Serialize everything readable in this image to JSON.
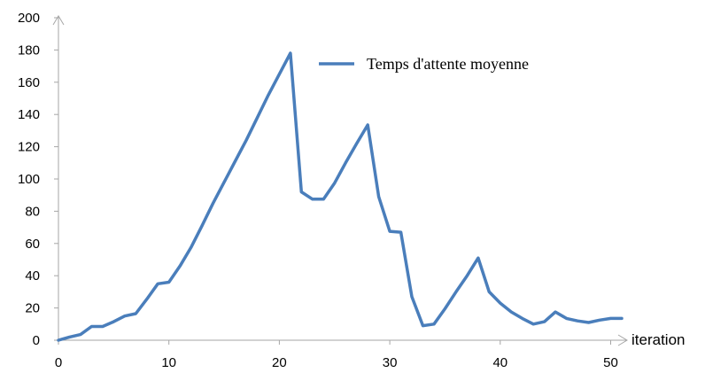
{
  "chart_data": {
    "type": "line",
    "title": "",
    "xlabel": "iteration",
    "ylabel": "",
    "xlim": [
      0,
      51
    ],
    "ylim": [
      0,
      200
    ],
    "x_ticks": [
      0,
      10,
      20,
      30,
      40,
      50
    ],
    "y_ticks": [
      0,
      20,
      40,
      60,
      80,
      100,
      120,
      140,
      160,
      180,
      200
    ],
    "grid": false,
    "legend_position": "top-right",
    "series": [
      {
        "name": "Temps d'attente moyenne",
        "color": "#4a7ebb",
        "points": [
          [
            0,
            0
          ],
          [
            1,
            2
          ],
          [
            2,
            3.5
          ],
          [
            3,
            8.5
          ],
          [
            4,
            8.5
          ],
          [
            5,
            11.5
          ],
          [
            6,
            15
          ],
          [
            7,
            16.5
          ],
          [
            8,
            25.5
          ],
          [
            9,
            35
          ],
          [
            10,
            36
          ],
          [
            11,
            46
          ],
          [
            12,
            57.5
          ],
          [
            13,
            71
          ],
          [
            14,
            85
          ],
          [
            15,
            98
          ],
          [
            16,
            111
          ],
          [
            17,
            124
          ],
          [
            18,
            138
          ],
          [
            19,
            152
          ],
          [
            20,
            165
          ],
          [
            21,
            178
          ],
          [
            22,
            92
          ],
          [
            23,
            87.5
          ],
          [
            24,
            87.5
          ],
          [
            25,
            97.5
          ],
          [
            26,
            110
          ],
          [
            27,
            122
          ],
          [
            28,
            133.5
          ],
          [
            29,
            89
          ],
          [
            30,
            67.5
          ],
          [
            31,
            67
          ],
          [
            32,
            27
          ],
          [
            33,
            9
          ],
          [
            34,
            10
          ],
          [
            35,
            19.5
          ],
          [
            36,
            30
          ],
          [
            37,
            40
          ],
          [
            38,
            51
          ],
          [
            39,
            30
          ],
          [
            40,
            23
          ],
          [
            41,
            17.5
          ],
          [
            42,
            13.5
          ],
          [
            43,
            10
          ],
          [
            44,
            11.5
          ],
          [
            45,
            17.5
          ],
          [
            46,
            13.5
          ],
          [
            47,
            12
          ],
          [
            48,
            11
          ],
          [
            49,
            12.5
          ],
          [
            50,
            13.5
          ],
          [
            51,
            13.5
          ]
        ]
      }
    ]
  }
}
